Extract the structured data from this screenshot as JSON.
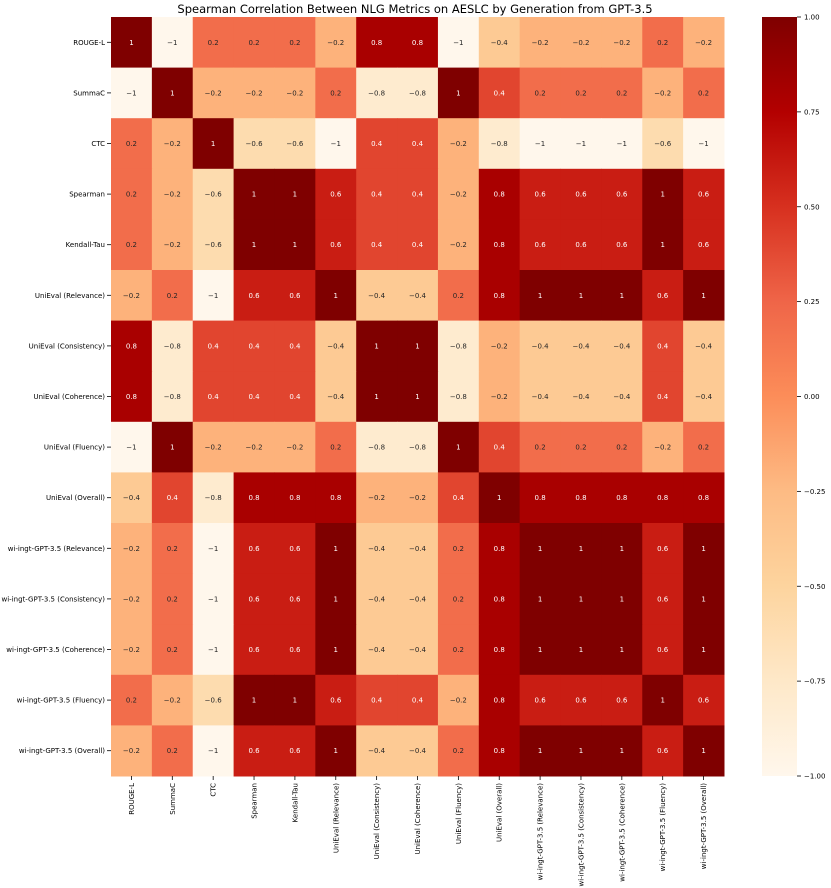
{
  "chart_data": {
    "type": "heatmap",
    "title": "Spearman Correlation Between NLG Metrics on AESLC by Generation from GPT-3.5",
    "xlabel": "",
    "ylabel": "",
    "rows": [
      "ROUGE-L",
      "SummaC",
      "CTC",
      "Spearman",
      "Kendall-Tau",
      "UniEval (Relevance)",
      "UniEval (Consistency)",
      "UniEval (Coherence)",
      "UniEval (Fluency)",
      "UniEval (Overall)",
      "wi-ingt-GPT-3.5 (Relevance)",
      "wi-ingt-GPT-3.5 (Consistency)",
      "wi-ingt-GPT-3.5 (Coherence)",
      "wi-ingt-GPT-3.5 (Fluency)",
      "wi-ingt-GPT-3.5 (Overall)"
    ],
    "columns": [
      "ROUGE-L",
      "SummaC",
      "CTC",
      "Spearman",
      "Kendall-Tau",
      "UniEval (Relevance)",
      "UniEval (Consistency)",
      "UniEval (Coherence)",
      "UniEval (Fluency)",
      "UniEval (Overall)",
      "wi-ingt-GPT-3.5 (Relevance)",
      "wi-ingt-GPT-3.5 (Consistency)",
      "wi-ingt-GPT-3.5 (Coherence)",
      "wi-ingt-GPT-3.5 (Fluency)",
      "wi-ingt-GPT-3.5 (Overall)"
    ],
    "values": [
      [
        1,
        -1,
        0.2,
        0.2,
        0.2,
        -0.2,
        0.8,
        0.8,
        -1,
        -0.4,
        -0.2,
        -0.2,
        -0.2,
        0.2,
        -0.2
      ],
      [
        -1,
        1,
        -0.2,
        -0.2,
        -0.2,
        0.2,
        -0.8,
        -0.8,
        1,
        0.4,
        0.2,
        0.2,
        0.2,
        -0.2,
        0.2
      ],
      [
        0.2,
        -0.2,
        1,
        -0.6,
        -0.6,
        -1,
        0.4,
        0.4,
        -0.2,
        -0.8,
        -1,
        -1,
        -1,
        -0.6,
        -1
      ],
      [
        0.2,
        -0.2,
        -0.6,
        1,
        1,
        0.6,
        0.4,
        0.4,
        -0.2,
        0.8,
        0.6,
        0.6,
        0.6,
        1,
        0.6
      ],
      [
        0.2,
        -0.2,
        -0.6,
        1,
        1,
        0.6,
        0.4,
        0.4,
        -0.2,
        0.8,
        0.6,
        0.6,
        0.6,
        1,
        0.6
      ],
      [
        -0.2,
        0.2,
        -1,
        0.6,
        0.6,
        1,
        -0.4,
        -0.4,
        0.2,
        0.8,
        1,
        1,
        1,
        0.6,
        1
      ],
      [
        0.8,
        -0.8,
        0.4,
        0.4,
        0.4,
        -0.4,
        1,
        1,
        -0.8,
        -0.2,
        -0.4,
        -0.4,
        -0.4,
        0.4,
        -0.4
      ],
      [
        0.8,
        -0.8,
        0.4,
        0.4,
        0.4,
        -0.4,
        1,
        1,
        -0.8,
        -0.2,
        -0.4,
        -0.4,
        -0.4,
        0.4,
        -0.4
      ],
      [
        -1,
        1,
        -0.2,
        -0.2,
        -0.2,
        0.2,
        -0.8,
        -0.8,
        1,
        0.4,
        0.2,
        0.2,
        0.2,
        -0.2,
        0.2
      ],
      [
        -0.4,
        0.4,
        -0.8,
        0.8,
        0.8,
        0.8,
        -0.2,
        -0.2,
        0.4,
        1,
        0.8,
        0.8,
        0.8,
        0.8,
        0.8
      ],
      [
        -0.2,
        0.2,
        -1,
        0.6,
        0.6,
        1,
        -0.4,
        -0.4,
        0.2,
        0.8,
        1,
        1,
        1,
        0.6,
        1
      ],
      [
        -0.2,
        0.2,
        -1,
        0.6,
        0.6,
        1,
        -0.4,
        -0.4,
        0.2,
        0.8,
        1,
        1,
        1,
        0.6,
        1
      ],
      [
        -0.2,
        0.2,
        -1,
        0.6,
        0.6,
        1,
        -0.4,
        -0.4,
        0.2,
        0.8,
        1,
        1,
        1,
        0.6,
        1
      ],
      [
        0.2,
        -0.2,
        -0.6,
        1,
        1,
        0.6,
        0.4,
        0.4,
        -0.2,
        0.8,
        0.6,
        0.6,
        0.6,
        1,
        0.6
      ],
      [
        -0.2,
        0.2,
        -1,
        0.6,
        0.6,
        1,
        -0.4,
        -0.4,
        0.2,
        0.8,
        1,
        1,
        1,
        0.6,
        1
      ]
    ],
    "colorbar": {
      "range": [
        -1,
        1
      ],
      "ticks": [
        1,
        0.75,
        0.5,
        0.25,
        0,
        -0.25,
        -0.5,
        -0.75,
        -1
      ],
      "tick_labels": [
        "1.00",
        "0.75",
        "0.50",
        "0.25",
        "0.00",
        "−0.25",
        "−0.50",
        "−0.75",
        "−1.00"
      ],
      "colormap": "OrRd",
      "colors": [
        "#fff7ec",
        "#fee8c8",
        "#fdd49e",
        "#fdbb84",
        "#fc8d59",
        "#ef6548",
        "#d7301f",
        "#b30000",
        "#7f0000"
      ]
    },
    "annotations_shown": true,
    "legend": "colorbar-right",
    "grid": false
  }
}
